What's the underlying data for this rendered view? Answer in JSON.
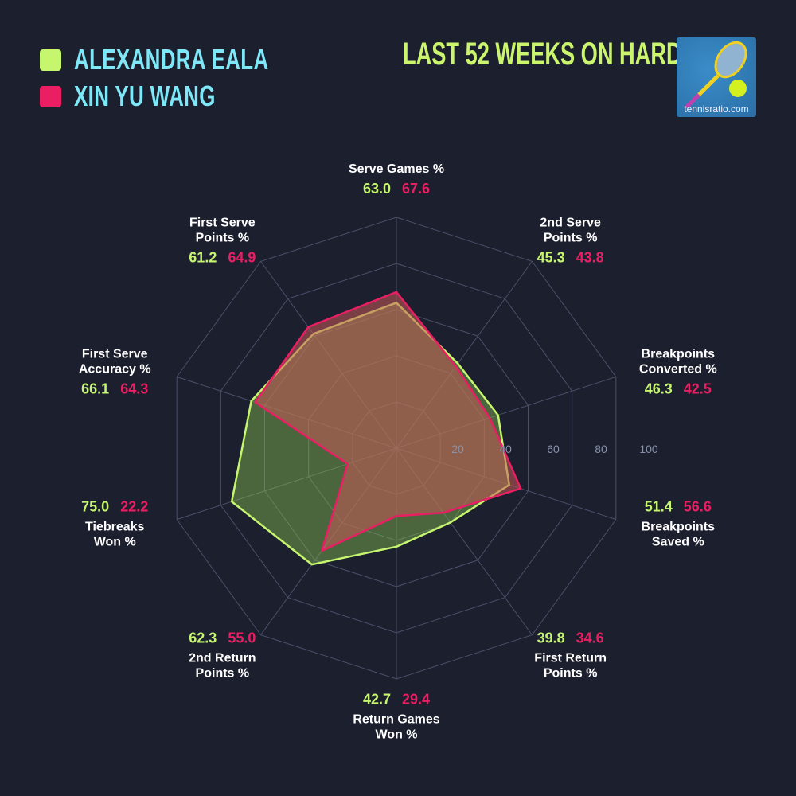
{
  "title": "LAST 52 WEEKS ON HARD",
  "logo": {
    "text": "tennisratio.com"
  },
  "colors": {
    "background": "#1c1f2e",
    "player1": "#c6f56e",
    "player2": "#e91e63",
    "legend_text": "#7fe8f8"
  },
  "chart_data": {
    "type": "radar",
    "title": "LAST 52 WEEKS ON HARD",
    "range": [
      0,
      100
    ],
    "ticks": [
      "20",
      "40",
      "60",
      "80",
      "100"
    ],
    "grid": true,
    "legend_placement": "top-left",
    "axes": [
      {
        "label": "Serve Games %",
        "lines": [
          "Serve Games %"
        ]
      },
      {
        "label": "2nd Serve Points %",
        "lines": [
          "2nd Serve",
          "Points %"
        ]
      },
      {
        "label": "Breakpoints Converted %",
        "lines": [
          "Breakpoints",
          "Converted %"
        ]
      },
      {
        "label": "Breakpoints Saved %",
        "lines": [
          "Breakpoints",
          "Saved %"
        ]
      },
      {
        "label": "First Return Points %",
        "lines": [
          "First Return",
          "Points %"
        ]
      },
      {
        "label": "Return Games Won %",
        "lines": [
          "Return Games",
          "Won %"
        ]
      },
      {
        "label": "2nd Return Points %",
        "lines": [
          "2nd Return",
          "Points %"
        ]
      },
      {
        "label": "Tiebreaks Won %",
        "lines": [
          "Tiebreaks",
          "Won %"
        ]
      },
      {
        "label": "First Serve Accuracy %",
        "lines": [
          "First Serve",
          "Accuracy %"
        ]
      },
      {
        "label": "First Serve Points %",
        "lines": [
          "First Serve",
          "Points %"
        ]
      }
    ],
    "series": [
      {
        "name": "ALEXANDRA EALA",
        "color": "#c6f56e",
        "values": [
          63.0,
          45.3,
          46.3,
          51.4,
          39.8,
          42.7,
          62.3,
          75.0,
          66.1,
          61.2
        ],
        "labels": [
          "63.0",
          "45.3",
          "46.3",
          "51.4",
          "39.8",
          "42.7",
          "62.3",
          "75.0",
          "66.1",
          "61.2"
        ]
      },
      {
        "name": "XIN YU WANG",
        "color": "#e91e63",
        "values": [
          67.6,
          43.8,
          42.5,
          56.6,
          34.6,
          29.4,
          55.0,
          22.2,
          64.3,
          64.9
        ],
        "labels": [
          "67.6",
          "43.8",
          "42.5",
          "56.6",
          "34.6",
          "29.4",
          "55.0",
          "22.2",
          "64.3",
          "64.9"
        ]
      }
    ]
  }
}
